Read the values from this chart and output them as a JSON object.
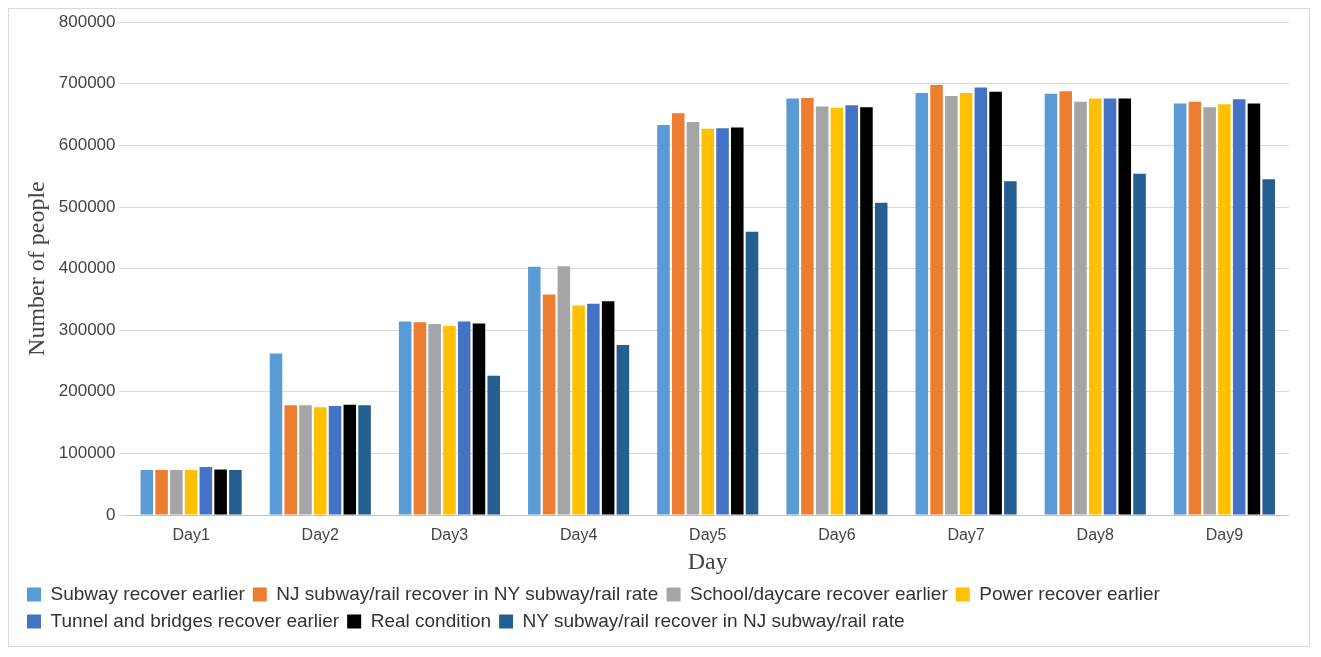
{
  "chart_data": {
    "type": "bar",
    "xlabel": "Day",
    "ylabel": "Number of people",
    "categories": [
      "Day1",
      "Day2",
      "Day3",
      "Day4",
      "Day5",
      "Day6",
      "Day7",
      "Day8",
      "Day9"
    ],
    "series": [
      {
        "name": "Subway recover earlier",
        "color": "#5b9bd5",
        "values": [
          73000,
          262000,
          314000,
          403000,
          633000,
          676000,
          685000,
          684000,
          668000
        ]
      },
      {
        "name": "NJ subway/rail recover in NY subway/rail rate",
        "color": "#ed7d31",
        "values": [
          73000,
          178000,
          313000,
          358000,
          652000,
          677000,
          698000,
          688000,
          671000
        ]
      },
      {
        "name": "School/daycare recover earlier",
        "color": "#a5a5a5",
        "values": [
          73000,
          178000,
          310000,
          404000,
          638000,
          663000,
          680000,
          671000,
          662000
        ]
      },
      {
        "name": "Power recover earlier",
        "color": "#ffc000",
        "values": [
          73000,
          175000,
          307000,
          340000,
          627000,
          661000,
          685000,
          676000,
          667000
        ]
      },
      {
        "name": "Tunnel and bridges recover earlier",
        "color": "#4472c4",
        "values": [
          78000,
          177000,
          314000,
          343000,
          628000,
          665000,
          694000,
          676000,
          675000
        ]
      },
      {
        "name": "Real condition",
        "color": "#000000",
        "values": [
          74000,
          179000,
          311000,
          347000,
          629000,
          662000,
          687000,
          676000,
          668000
        ]
      },
      {
        "name": "NY subway/rail recover in NJ subway/rail rate",
        "color": "#255e91",
        "values": [
          73000,
          178000,
          226000,
          276000,
          460000,
          507000,
          542000,
          554000,
          545000
        ]
      }
    ],
    "ylim": [
      0,
      800000
    ],
    "yticks": [
      0,
      100000,
      200000,
      300000,
      400000,
      500000,
      600000,
      700000,
      800000
    ],
    "grid": "y",
    "legend": "bottom"
  }
}
